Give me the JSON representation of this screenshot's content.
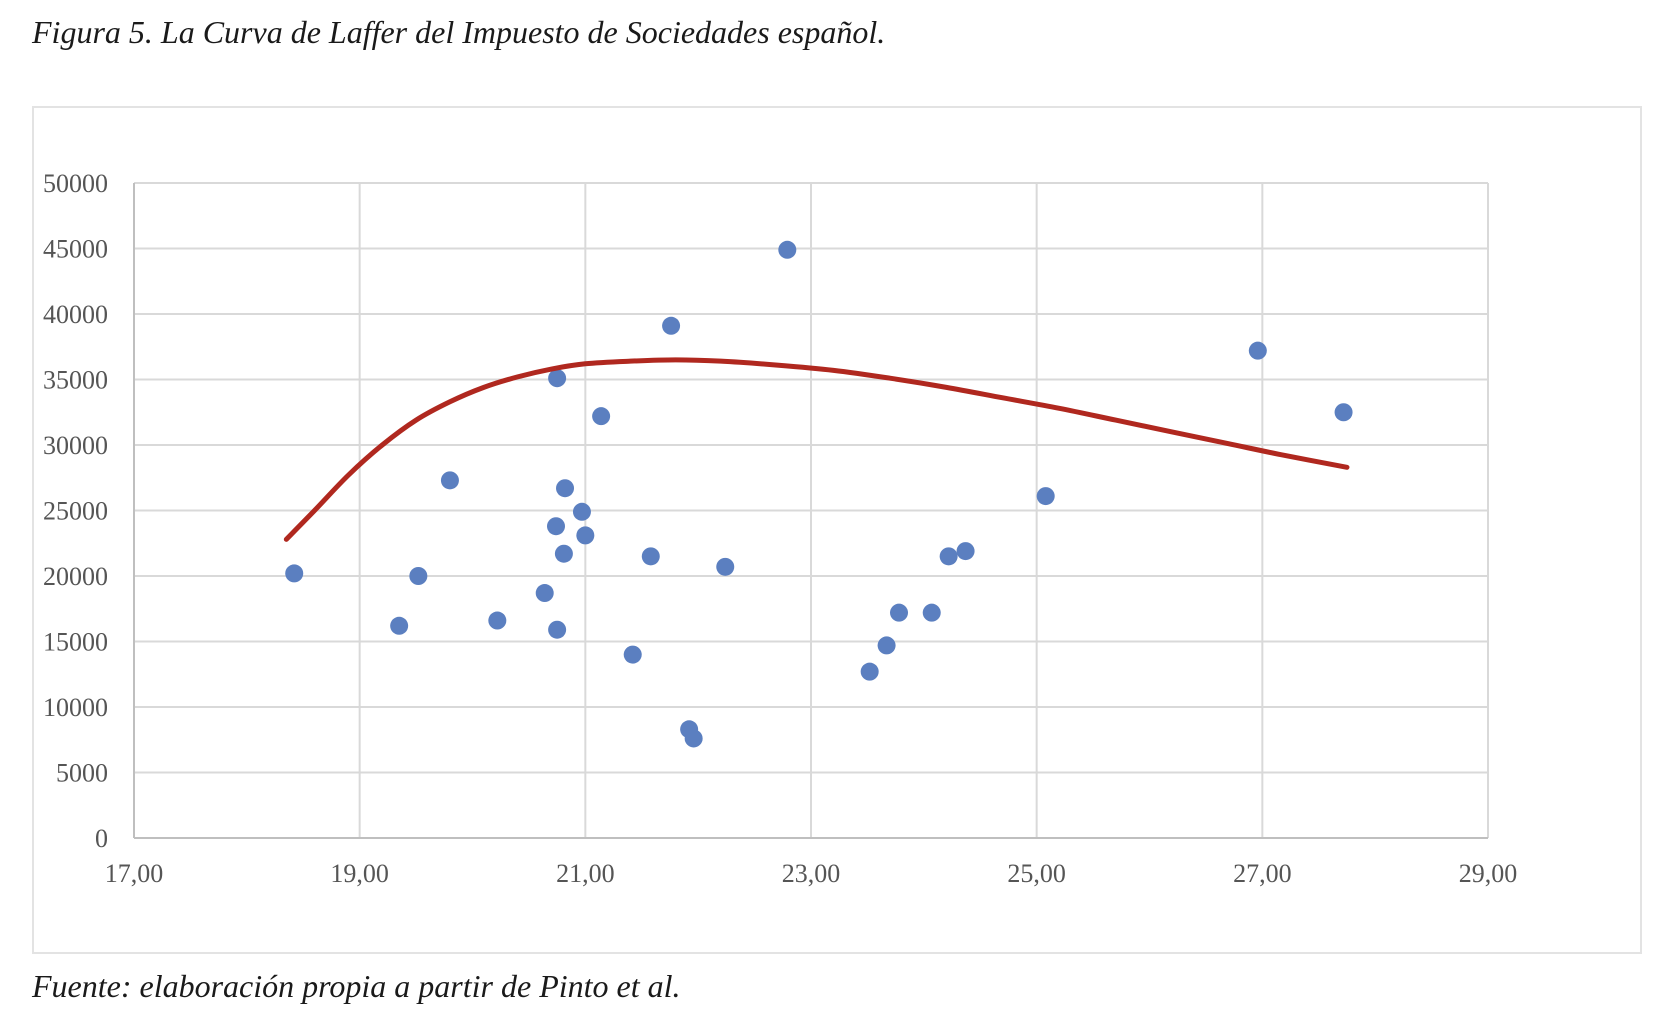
{
  "figure": {
    "title": "Figura 5. La Curva de Laffer del Impuesto de Sociedades español.",
    "source": "Fuente: elaboración propia a partir de Pinto et al."
  },
  "chart_data": {
    "type": "scatter",
    "x_ticks": [
      "17,00",
      "19,00",
      "21,00",
      "23,00",
      "25,00",
      "27,00",
      "29,00"
    ],
    "y_ticks": [
      "0",
      "5000",
      "10000",
      "15000",
      "20000",
      "25000",
      "30000",
      "35000",
      "40000",
      "45000",
      "50000"
    ],
    "xlim": [
      17,
      29
    ],
    "ylim": [
      0,
      50000
    ],
    "grid": true,
    "colors": {
      "points": "#5b7fc0",
      "curve": "#b0281f",
      "grid": "#d9d9d9"
    },
    "points": [
      {
        "x": 18.42,
        "y": 20200
      },
      {
        "x": 19.35,
        "y": 16200
      },
      {
        "x": 19.52,
        "y": 20000
      },
      {
        "x": 19.8,
        "y": 27300
      },
      {
        "x": 20.22,
        "y": 16600
      },
      {
        "x": 20.64,
        "y": 18700
      },
      {
        "x": 20.74,
        "y": 23800
      },
      {
        "x": 20.75,
        "y": 35100
      },
      {
        "x": 20.75,
        "y": 15900
      },
      {
        "x": 20.81,
        "y": 21700
      },
      {
        "x": 20.82,
        "y": 26700
      },
      {
        "x": 20.97,
        "y": 24900
      },
      {
        "x": 21.0,
        "y": 23100
      },
      {
        "x": 21.14,
        "y": 32200
      },
      {
        "x": 21.42,
        "y": 14000
      },
      {
        "x": 21.58,
        "y": 21500
      },
      {
        "x": 21.76,
        "y": 39100
      },
      {
        "x": 21.92,
        "y": 8300
      },
      {
        "x": 21.96,
        "y": 7600
      },
      {
        "x": 22.24,
        "y": 20700
      },
      {
        "x": 22.79,
        "y": 44900
      },
      {
        "x": 23.52,
        "y": 12700
      },
      {
        "x": 23.67,
        "y": 14700
      },
      {
        "x": 23.78,
        "y": 17200
      },
      {
        "x": 24.07,
        "y": 17200
      },
      {
        "x": 24.22,
        "y": 21500
      },
      {
        "x": 24.37,
        "y": 21900
      },
      {
        "x": 25.08,
        "y": 26100
      },
      {
        "x": 26.96,
        "y": 37200
      },
      {
        "x": 27.72,
        "y": 32500
      }
    ],
    "trend_curve": [
      {
        "x": 18.35,
        "y": 22800
      },
      {
        "x": 18.6,
        "y": 25000
      },
      {
        "x": 18.9,
        "y": 27700
      },
      {
        "x": 19.2,
        "y": 30000
      },
      {
        "x": 19.5,
        "y": 31900
      },
      {
        "x": 19.8,
        "y": 33300
      },
      {
        "x": 20.1,
        "y": 34400
      },
      {
        "x": 20.4,
        "y": 35200
      },
      {
        "x": 20.7,
        "y": 35800
      },
      {
        "x": 21.0,
        "y": 36200
      },
      {
        "x": 21.4,
        "y": 36400
      },
      {
        "x": 21.8,
        "y": 36500
      },
      {
        "x": 22.2,
        "y": 36400
      },
      {
        "x": 22.7,
        "y": 36100
      },
      {
        "x": 23.2,
        "y": 35700
      },
      {
        "x": 23.7,
        "y": 35100
      },
      {
        "x": 24.2,
        "y": 34400
      },
      {
        "x": 24.7,
        "y": 33600
      },
      {
        "x": 25.2,
        "y": 32800
      },
      {
        "x": 25.7,
        "y": 31900
      },
      {
        "x": 26.2,
        "y": 31000
      },
      {
        "x": 26.7,
        "y": 30100
      },
      {
        "x": 27.2,
        "y": 29200
      },
      {
        "x": 27.75,
        "y": 28300
      }
    ]
  }
}
